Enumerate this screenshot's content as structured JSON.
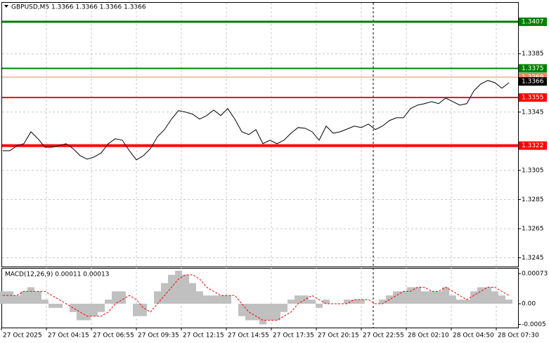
{
  "chart_data": [
    {
      "type": "line",
      "title": "GBPUSD,M5  1.3366 1.3366 1.3366 1.3366",
      "color": "#000000",
      "values": [
        1.33185,
        1.33185,
        1.33219,
        1.33233,
        1.33315,
        1.33267,
        1.33209,
        1.33209,
        1.33219,
        1.33233,
        1.33199,
        1.33151,
        1.33127,
        1.33142,
        1.3317,
        1.33233,
        1.33267,
        1.33257,
        1.33185,
        1.33122,
        1.33151,
        1.33199,
        1.33281,
        1.3333,
        1.33402,
        1.3346,
        1.3345,
        1.33436,
        1.33402,
        1.33426,
        1.33464,
        1.33426,
        1.33474,
        1.33402,
        1.33315,
        1.33296,
        1.3333,
        1.33233,
        1.33257,
        1.33233,
        1.33257,
        1.33305,
        1.33344,
        1.33339,
        1.33315,
        1.33257,
        1.33354,
        1.33305,
        1.33315,
        1.33334,
        1.33354,
        1.33344,
        1.33368,
        1.3333,
        1.33354,
        1.33392,
        1.33411,
        1.33411,
        1.33474,
        1.33498,
        1.33508,
        1.33522,
        1.33508,
        1.33546,
        1.33522,
        1.33498,
        1.33508,
        1.33595,
        1.33643,
        1.33667,
        1.33652,
        1.33614,
        1.33652
      ],
      "ylim": [
        1.3239,
        1.342
      ],
      "yticks": [
        1.3385,
        1.3345,
        1.3305,
        1.3285,
        1.3265,
        1.3245
      ],
      "grid": true,
      "levels": [
        {
          "value": 1.3407,
          "color": "#008000"
        },
        {
          "value": 1.3375,
          "color": "#008000"
        },
        {
          "value": 1.3369,
          "color": "#f4845f"
        },
        {
          "value": 1.3355,
          "color": "#ff0000"
        },
        {
          "value": 1.3322,
          "color": "#ff0000"
        }
      ],
      "price_label": {
        "value": 1.3366,
        "color": "#000000"
      },
      "x_labels": [
        "27 Oct 2025",
        "27 Oct 04:15",
        "27 Oct 06:55",
        "27 Oct 09:35",
        "27 Oct 12:15",
        "27 Oct 14:55",
        "27 Oct 17:35",
        "27 Oct 20:15",
        "27 Oct 22:55",
        "28 Oct 02:10",
        "28 Oct 04:50",
        "28 Oct 07:30"
      ]
    },
    {
      "type": "bar",
      "title": "MACD(12,26,9) 0.00011 0.00013",
      "series": [
        {
          "type": "bar",
          "color": "#c0c0c0",
          "values": [
            0.0003,
            0.0003,
            0.0002,
            0.0003,
            0.0004,
            0.0003,
            0.0001,
            -0.0001,
            -0.0001,
            0,
            -0.0002,
            -0.0004,
            -0.0004,
            -0.0003,
            -0.0002,
            0.0001,
            0.0003,
            0.0003,
            0,
            -0.0003,
            -0.0003,
            0,
            0.0003,
            0.0005,
            0.0007,
            0.0008,
            0.0007,
            0.0005,
            0.0003,
            0.0002,
            0.0002,
            0.0002,
            0.0002,
            0,
            -0.0003,
            -0.0004,
            -0.0004,
            -0.0005,
            -0.0004,
            -0.0004,
            -0.0002,
            0.0001,
            0.0002,
            0.0002,
            0.0001,
            -0.0001,
            0.0001,
            0,
            0,
            0.0001,
            0.0001,
            0.0001,
            0,
            0,
            0.0001,
            0.0002,
            0.0003,
            0.0003,
            0.0004,
            0.0004,
            0.0003,
            0.0003,
            0.0003,
            0.0004,
            0.0002,
            0.0001,
            0.0001,
            0.0003,
            0.0004,
            0.0004,
            0.0003,
            0.0002,
            0.0001
          ]
        },
        {
          "type": "line",
          "color": "#ff0000",
          "values": [
            0.0002,
            0.0002,
            0.0002,
            0.0003,
            0.0003,
            0.0003,
            0.0003,
            0.0002,
            0.0001,
            0,
            -0.0001,
            -0.0002,
            -0.0003,
            -0.0003,
            -0.0003,
            -0.0002,
            0,
            0.0001,
            0.0002,
            0.0001,
            -0.0001,
            -0.0002,
            0,
            0.0002,
            0.0004,
            0.0006,
            0.0007,
            0.0007,
            0.0006,
            0.0004,
            0.0003,
            0.0002,
            0.0002,
            0.0002,
            0,
            -0.0002,
            -0.0003,
            -0.0004,
            -0.0004,
            -0.0004,
            -0.0003,
            -0.0002,
            0,
            0.0001,
            0.0002,
            0.0001,
            0,
            0,
            0,
            0,
            0.0001,
            0.0001,
            0.0001,
            0,
            0,
            0.0001,
            0.0002,
            0.0003,
            0.0003,
            0.0004,
            0.0004,
            0.0003,
            0.0003,
            0.0004,
            0.0003,
            0.0002,
            0.0001,
            0.0002,
            0.0003,
            0.0004,
            0.0004,
            0.0003,
            0.0002
          ]
        }
      ],
      "ylim": [
        -0.00056,
        0.00085
      ],
      "yticks": [
        0.00073,
        {
          "value": 0,
          "label": "0.00"
        },
        -0.0005
      ]
    }
  ]
}
